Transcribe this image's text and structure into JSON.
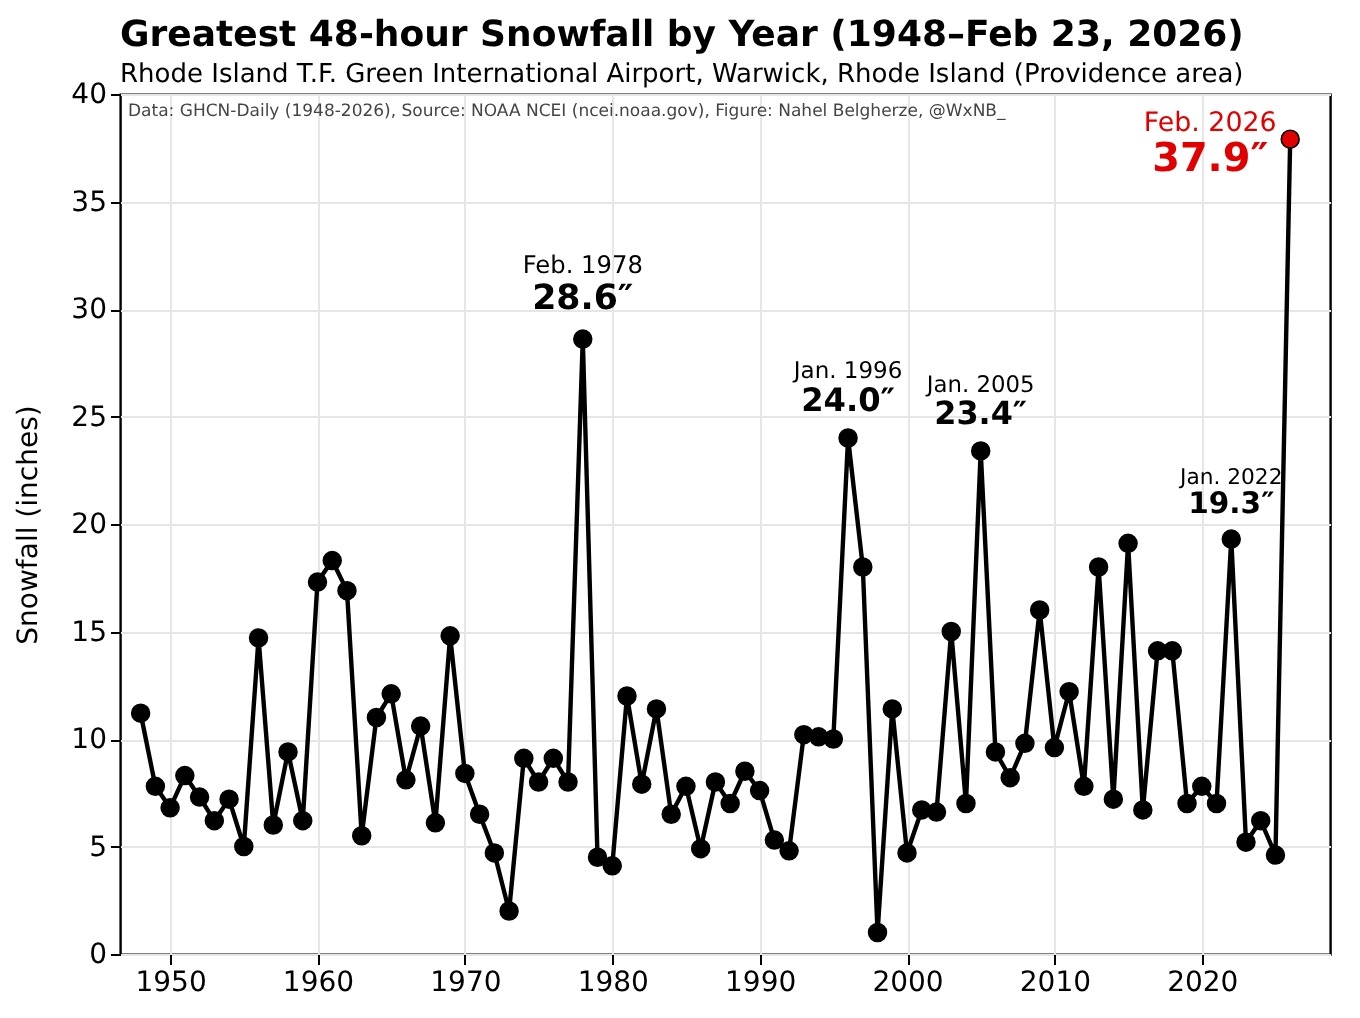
{
  "chart_data": {
    "type": "line",
    "title": "Greatest 48-hour Snowfall by Year (1948–Feb 23, 2026)",
    "subtitle": "Rhode Island T.F. Green International Airport, Warwick, Rhode Island (Providence area)",
    "ylabel": "Snowfall (inches)",
    "x": [
      1948,
      1949,
      1950,
      1951,
      1952,
      1953,
      1954,
      1955,
      1956,
      1957,
      1958,
      1959,
      1960,
      1961,
      1962,
      1963,
      1964,
      1965,
      1966,
      1967,
      1968,
      1969,
      1970,
      1971,
      1972,
      1973,
      1974,
      1975,
      1976,
      1977,
      1978,
      1979,
      1980,
      1981,
      1982,
      1983,
      1984,
      1985,
      1986,
      1987,
      1988,
      1989,
      1990,
      1991,
      1992,
      1993,
      1994,
      1995,
      1996,
      1997,
      1998,
      1999,
      2000,
      2001,
      2002,
      2003,
      2004,
      2005,
      2006,
      2007,
      2008,
      2009,
      2010,
      2011,
      2012,
      2013,
      2014,
      2015,
      2016,
      2017,
      2018,
      2019,
      2020,
      2021,
      2022,
      2023,
      2024,
      2025,
      2026
    ],
    "series": [
      {
        "color": "#000000",
        "values": [
          11.2,
          7.8,
          6.8,
          8.3,
          7.3,
          6.2,
          7.2,
          5.0,
          14.7,
          6.0,
          9.4,
          6.2,
          17.3,
          18.3,
          16.9,
          5.5,
          11.0,
          12.1,
          8.1,
          10.6,
          6.1,
          14.8,
          8.4,
          6.5,
          4.7,
          2.0,
          9.1,
          8.0,
          9.1,
          8.0,
          28.6,
          4.5,
          4.1,
          12.0,
          7.9,
          11.4,
          6.5,
          7.8,
          4.9,
          8.0,
          7.0,
          8.5,
          7.6,
          5.3,
          4.8,
          10.2,
          10.1,
          10.0,
          24.0,
          18.0,
          1.0,
          11.4,
          4.7,
          6.7,
          6.6,
          15.0,
          7.0,
          23.4,
          9.4,
          8.2,
          9.8,
          16.0,
          9.6,
          12.2,
          7.8,
          18.0,
          7.2,
          19.1,
          6.7,
          14.1,
          14.1,
          7.0,
          7.8,
          7.0,
          19.3,
          5.2,
          6.2,
          4.6,
          37.9
        ],
        "colors": [
          "#000000",
          "#000000",
          "#000000",
          "#000000",
          "#000000",
          "#000000",
          "#000000",
          "#000000",
          "#000000",
          "#000000",
          "#000000",
          "#000000",
          "#000000",
          "#000000",
          "#000000",
          "#000000",
          "#000000",
          "#000000",
          "#000000",
          "#000000",
          "#000000",
          "#000000",
          "#000000",
          "#000000",
          "#000000",
          "#000000",
          "#000000",
          "#000000",
          "#000000",
          "#000000",
          "#000000",
          "#000000",
          "#000000",
          "#000000",
          "#000000",
          "#000000",
          "#000000",
          "#000000",
          "#000000",
          "#000000",
          "#000000",
          "#000000",
          "#000000",
          "#000000",
          "#000000",
          "#000000",
          "#000000",
          "#000000",
          "#000000",
          "#000000",
          "#000000",
          "#000000",
          "#000000",
          "#000000",
          "#000000",
          "#000000",
          "#000000",
          "#000000",
          "#000000",
          "#000000",
          "#000000",
          "#000000",
          "#000000",
          "#000000",
          "#000000",
          "#000000",
          "#000000",
          "#000000",
          "#000000",
          "#000000",
          "#000000",
          "#000000",
          "#000000",
          "#000000",
          "#000000",
          "#000000",
          "#000000",
          "#000000",
          "#e00000"
        ]
      }
    ],
    "xlim": [
      1946.6,
      2028.7
    ],
    "xticks": [
      1950,
      1960,
      1970,
      1980,
      1990,
      2000,
      2010,
      2020
    ],
    "ylim": [
      0,
      40
    ],
    "yticks": [
      0,
      5,
      10,
      15,
      20,
      25,
      30,
      35,
      40
    ],
    "grid": true,
    "marker": "circle",
    "line_style": "solid",
    "annotations": [
      "Data: GHCN-Daily (1948-2026), Source: NOAA NCEI (ncei.noaa.gov), Figure: Nahel Belgherze, @WxNB_",
      {
        "text": "Feb. 1978",
        "x": 1978,
        "y": 28.6
      },
      {
        "text": "28.6″",
        "x": 1978,
        "y": 28.6
      },
      {
        "text": "Jan. 1996",
        "x": 1996,
        "y": 24.0
      },
      {
        "text": "24.0″",
        "x": 1996,
        "y": 24.0
      },
      {
        "text": "Jan. 2005",
        "x": 2005,
        "y": 23.4
      },
      {
        "text": "23.4″",
        "x": 2005,
        "y": 23.4
      },
      {
        "text": "Jan. 2022",
        "x": 2022,
        "y": 19.3
      },
      {
        "text": "19.3″",
        "x": 2022,
        "y": 19.3
      },
      {
        "text": "Feb. 2026",
        "x": 2026,
        "y": 37.9
      },
      {
        "text": "37.9″",
        "x": 2026,
        "y": 37.9
      }
    ]
  }
}
